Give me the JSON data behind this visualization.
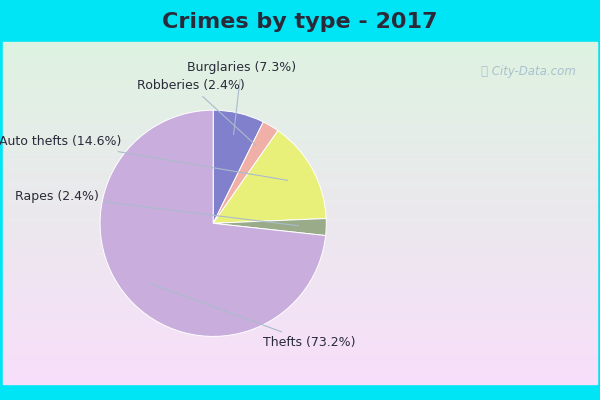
{
  "title": "Crimes by type - 2017",
  "labels": [
    "Thefts",
    "Auto thefts",
    "Rapes",
    "Burglaries",
    "Robberies"
  ],
  "values": [
    73.2,
    14.6,
    2.4,
    7.3,
    2.4
  ],
  "colors": [
    "#c9aedd",
    "#e8f07a",
    "#9aab8a",
    "#8080cc",
    "#f0b0a8"
  ],
  "bg_cyan": "#00e5f5",
  "title_color": "#2a2a3a",
  "title_fontsize": 16,
  "label_fontsize": 9,
  "watermark": "ⓘ City-Data.com",
  "startangle": 90
}
